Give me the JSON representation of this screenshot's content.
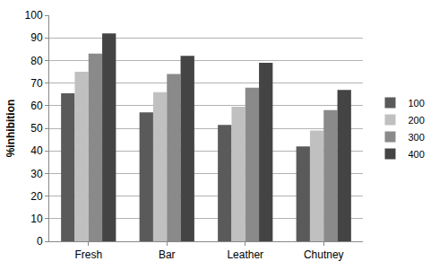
{
  "chart_data": {
    "type": "bar",
    "y_label": "%inhibition",
    "categories": [
      "Fresh",
      "Bar",
      "Leather",
      "Chutney"
    ],
    "series": [
      {
        "name": "100",
        "color": "#5a5a5a",
        "values": [
          65.5,
          57,
          51.5,
          42
        ]
      },
      {
        "name": "200",
        "color": "#c0c0c0",
        "values": [
          75,
          66,
          59.5,
          49
        ]
      },
      {
        "name": "300",
        "color": "#8a8a8a",
        "values": [
          83,
          74,
          68,
          58
        ]
      },
      {
        "name": "400",
        "color": "#444444",
        "values": [
          92,
          82,
          79,
          67
        ]
      }
    ],
    "ylim": [
      0,
      100
    ],
    "yticks": [
      0,
      10,
      20,
      30,
      40,
      50,
      60,
      70,
      80,
      90,
      100
    ],
    "grid": true,
    "legend": "right"
  }
}
